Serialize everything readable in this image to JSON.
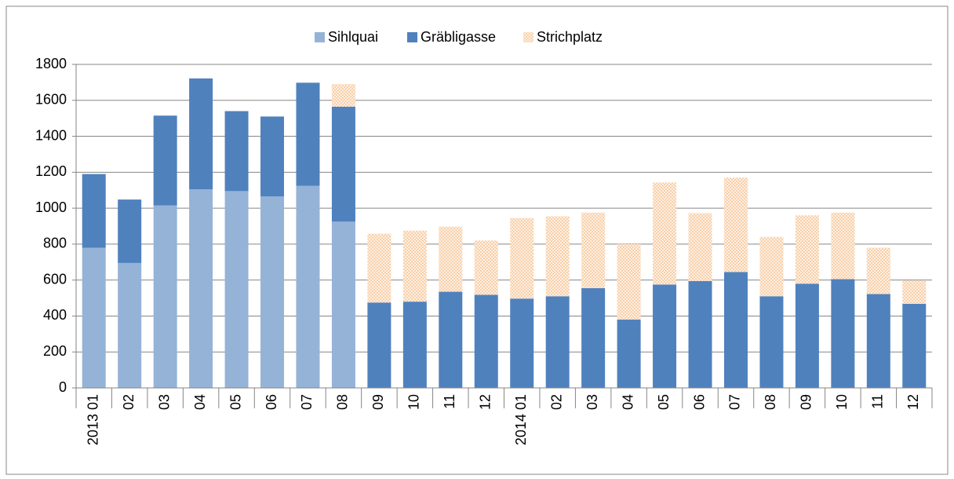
{
  "chart_data": {
    "type": "stacked_bar",
    "categories": [
      "2013 01",
      "02",
      "03",
      "04",
      "05",
      "06",
      "07",
      "08",
      "09",
      "10",
      "11",
      "12",
      "2014 01",
      "02",
      "03",
      "04",
      "05",
      "06",
      "07",
      "08",
      "09",
      "10",
      "11",
      "12"
    ],
    "series": [
      {
        "name": "Sihlquai",
        "color": "#95b3d7",
        "values": [
          780,
          695,
          1015,
          1105,
          1095,
          1065,
          1125,
          925,
          null,
          null,
          null,
          null,
          null,
          null,
          null,
          null,
          null,
          null,
          null,
          null,
          null,
          null,
          null,
          null
        ]
      },
      {
        "name": "Gräbligasse",
        "color": "#4f81bd",
        "values": [
          410,
          353,
          500,
          617,
          445,
          445,
          573,
          640,
          475,
          480,
          535,
          518,
          497,
          510,
          555,
          380,
          575,
          595,
          645,
          510,
          580,
          605,
          522,
          468
        ]
      },
      {
        "name": "Strichplatz",
        "color": "#f9cfa8",
        "values": [
          null,
          null,
          null,
          null,
          null,
          null,
          null,
          125,
          383,
          395,
          362,
          302,
          448,
          445,
          420,
          420,
          568,
          377,
          525,
          330,
          380,
          370,
          258,
          130
        ]
      }
    ],
    "ylim": [
      0,
      1800
    ],
    "yticks": [
      0,
      200,
      400,
      600,
      800,
      1000,
      1200,
      1400,
      1600,
      1800
    ],
    "grid": true,
    "legend": "top"
  }
}
